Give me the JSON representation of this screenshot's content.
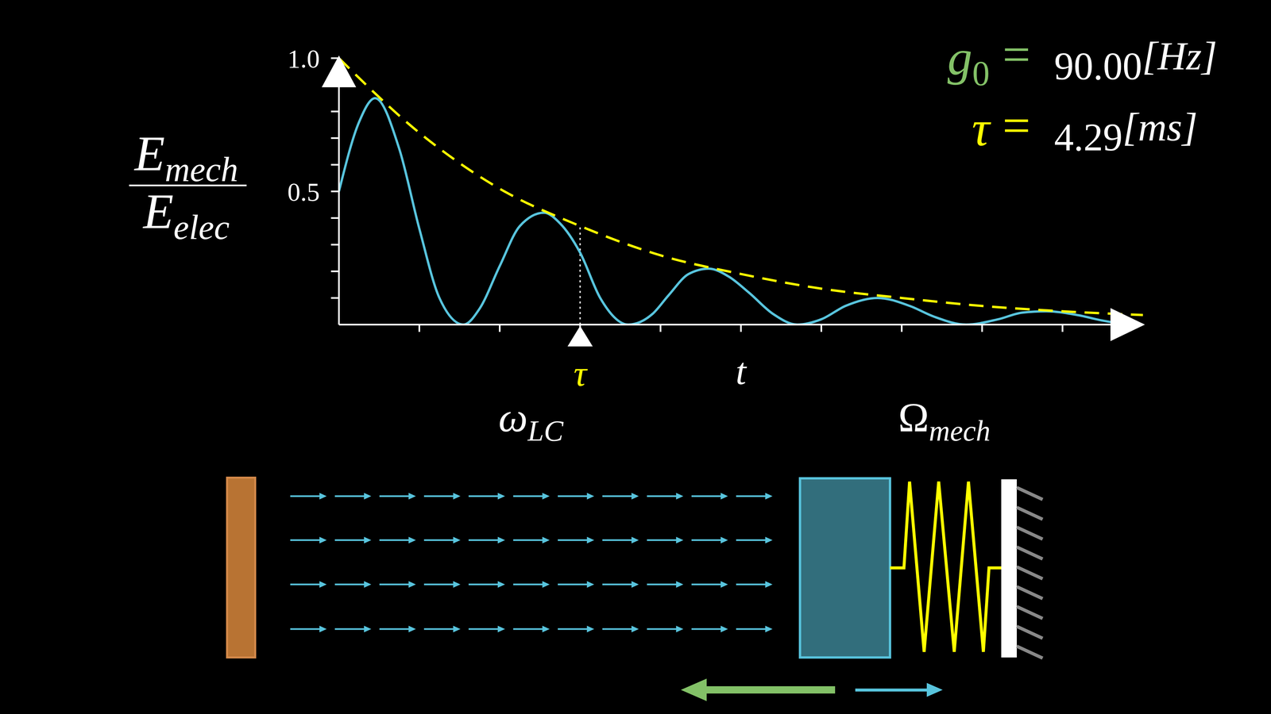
{
  "chart_data": {
    "type": "line",
    "y_label": {
      "numerator": {
        "base": "E",
        "sub": "mech"
      },
      "denominator": {
        "base": "E",
        "sub": "elec"
      }
    },
    "x_label": "t",
    "xlim": [
      0,
      10
    ],
    "xticks": [
      1,
      2,
      3,
      4,
      5,
      6,
      7,
      8,
      9
    ],
    "ylim": [
      0,
      1
    ],
    "yticks": [
      0.5,
      {
        "value": 1,
        "label": "1.0"
      }
    ],
    "minor_yticks": [
      0.1,
      0.2,
      0.3,
      0.4,
      0.6,
      0.7,
      0.8,
      0.9
    ],
    "tick_labels": "y",
    "grid": false,
    "series": [
      {
        "color": "#58C4DD",
        "line_style": "solid",
        "x": [
          0,
          0.25,
          0.45,
          0.75,
          1,
          1.25,
          1.55,
          1.75,
          2,
          2.25,
          2.55,
          2.75,
          3,
          3.25,
          3.6,
          3.9,
          4.1,
          4.35,
          4.6,
          4.85,
          5.1,
          5.4,
          5.7,
          6,
          6.3,
          6.7,
          7.1,
          7.4,
          7.8,
          8.2,
          8.5,
          8.8,
          9.2,
          9.5,
          9.8,
          10
        ],
        "values": [
          0.5,
          0.76,
          0.85,
          0.66,
          0.36,
          0.1,
          0,
          0.06,
          0.22,
          0.37,
          0.42,
          0.38,
          0.27,
          0.1,
          0,
          0.04,
          0.11,
          0.19,
          0.21,
          0.18,
          0.12,
          0.04,
          0,
          0.02,
          0.07,
          0.1,
          0.07,
          0.03,
          0,
          0.02,
          0.045,
          0.05,
          0.035,
          0.015,
          0.002,
          0
        ]
      },
      {
        "color": "#FFFF00",
        "line_style": "dashed",
        "x": [
          0,
          1,
          2,
          3,
          4,
          5,
          6,
          7,
          8,
          9,
          10
        ],
        "values": [
          1,
          0.72,
          0.51,
          0.37,
          0.26,
          0.19,
          0.135,
          0.1,
          0.07,
          0.05,
          0.036
        ]
      }
    ],
    "tau_marker": {
      "x": 3,
      "label": "τ"
    }
  },
  "annotations": [
    {
      "symbol": {
        "base": "g",
        "sub": "0"
      },
      "sign": "=",
      "value": 90,
      "value_label": "90.00",
      "unit": "[Hz]",
      "color": "#83C167"
    },
    {
      "symbol": {
        "base": "τ"
      },
      "sign": "=",
      "value": 4.29,
      "unit": "[ms]",
      "color": "#FFFF00"
    }
  ],
  "diagram": {
    "left_label": {
      "base": "ω",
      "sub": "LC"
    },
    "right_label": {
      "base": "Ω",
      "sub": "mech"
    }
  }
}
